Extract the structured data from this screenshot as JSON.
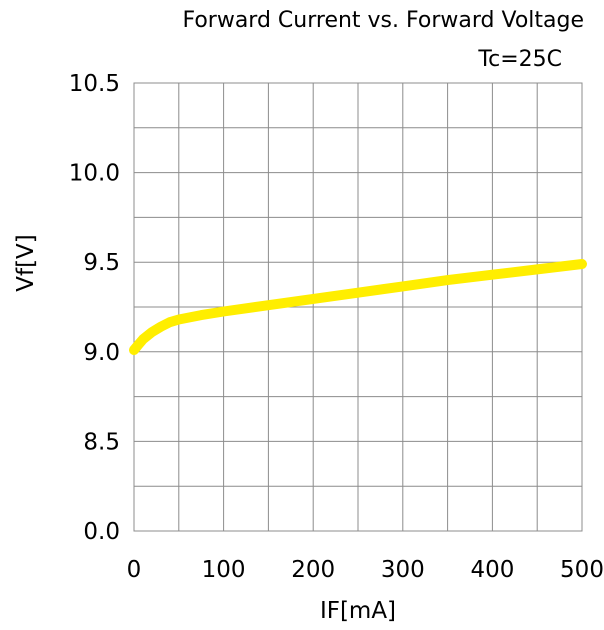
{
  "chart_data": {
    "type": "line",
    "title": "Forward Current vs. Forward Voltage",
    "subtitle": "Tc=25C",
    "xlabel": "IF[mA]",
    "ylabel": "Vf[V]",
    "xlim": [
      0,
      500
    ],
    "x_ticks": [
      "0",
      "100",
      "200",
      "300",
      "400",
      "500"
    ],
    "y_ticks": [
      "0.0",
      "8.5",
      "9.0",
      "9.5",
      "10.0",
      "10.5"
    ],
    "y_tick_values": [
      0.0,
      8.5,
      9.0,
      9.5,
      10.0,
      10.5
    ],
    "y_axis_note": "broken axis: bottom band spans 0.0 to 8.5",
    "grid": true,
    "series": [
      {
        "color": "#ffee00",
        "x": [
          0,
          5,
          10,
          20,
          30,
          40,
          50,
          75,
          100,
          150,
          200,
          250,
          300,
          350,
          400,
          450,
          500
        ],
        "y": [
          9.01,
          9.04,
          9.07,
          9.11,
          9.14,
          9.165,
          9.18,
          9.205,
          9.225,
          9.26,
          9.295,
          9.33,
          9.365,
          9.4,
          9.43,
          9.46,
          9.49
        ]
      }
    ]
  }
}
